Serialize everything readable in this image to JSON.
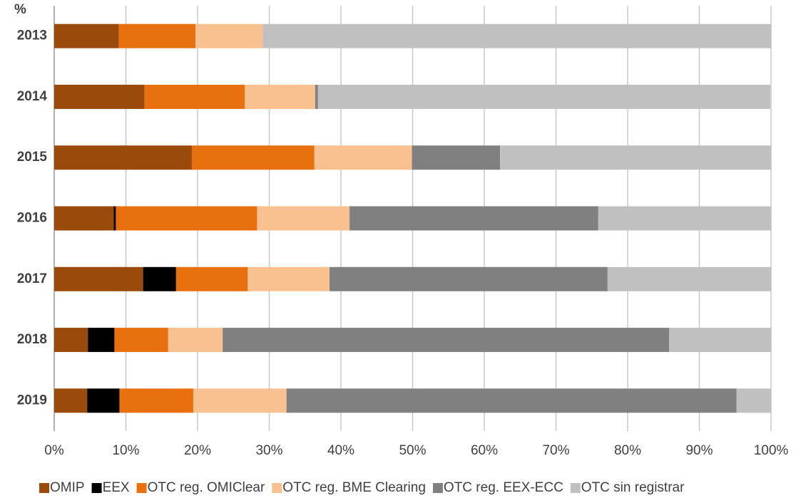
{
  "chart_data": {
    "type": "stacked-bar-horizontal",
    "unit_label": "%",
    "categories": [
      "2013",
      "2014",
      "2015",
      "2016",
      "2017",
      "2018",
      "2019"
    ],
    "series": [
      {
        "name": "OMIP",
        "color": "#9a4a0a",
        "values": [
          9.0,
          12.6,
          19.2,
          8.3,
          12.4,
          4.7,
          4.6
        ]
      },
      {
        "name": "EEX",
        "color": "#000000",
        "values": [
          0,
          0,
          0,
          0.3,
          4.6,
          3.7,
          4.5
        ]
      },
      {
        "name": "OTC reg. OMIClear",
        "color": "#e8700f",
        "values": [
          10.7,
          14.0,
          17.1,
          19.7,
          10.0,
          7.5,
          10.3
        ]
      },
      {
        "name": "OTC reg. BME Clearing",
        "color": "#f9c190",
        "values": [
          9.4,
          9.8,
          13.6,
          12.9,
          11.4,
          7.6,
          13.0
        ]
      },
      {
        "name": "OTC reg. EEX-ECC",
        "color": "#808080",
        "values": [
          0,
          0.4,
          12.3,
          34.7,
          38.8,
          62.3,
          62.8
        ]
      },
      {
        "name": "OTC sin registrar",
        "color": "#c0c0c0",
        "values": [
          70.9,
          63.1,
          37.8,
          24.1,
          22.8,
          14.2,
          4.8
        ]
      }
    ],
    "xlim": [
      0,
      100
    ],
    "xticks": [
      {
        "value": 0,
        "label": "0%"
      },
      {
        "value": 10,
        "label": "10%"
      },
      {
        "value": 20,
        "label": "20%"
      },
      {
        "value": 30,
        "label": "30%"
      },
      {
        "value": 40,
        "label": "40%"
      },
      {
        "value": 50,
        "label": "50%"
      },
      {
        "value": 60,
        "label": "60%"
      },
      {
        "value": 70,
        "label": "70%"
      },
      {
        "value": 80,
        "label": "80%"
      },
      {
        "value": 90,
        "label": "90%"
      },
      {
        "value": 100,
        "label": "100%"
      }
    ],
    "grid": true,
    "legend": "bottom"
  }
}
